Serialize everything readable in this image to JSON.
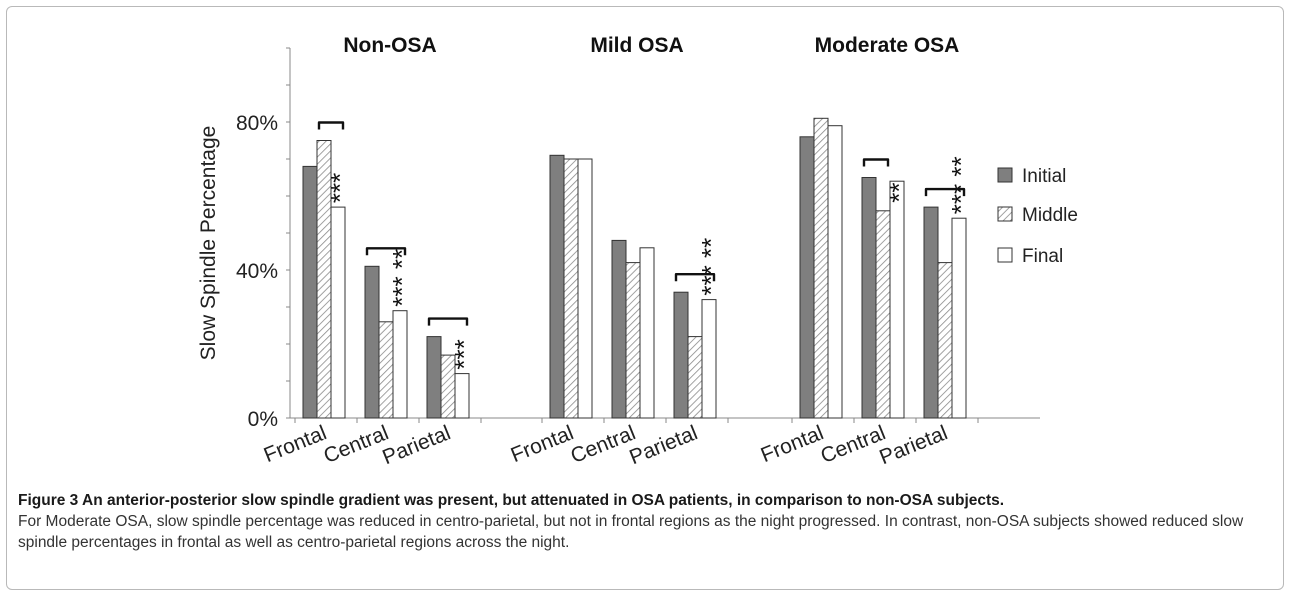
{
  "figure": {
    "title": "Figure 3 An anterior-posterior slow spindle gradient was present, but attenuated in OSA patients, in comparison to non-OSA subjects.",
    "body": "For Moderate OSA, slow spindle percentage was reduced in centro-parietal, but not in frontal regions as the night progressed. In contrast, non-OSA subjects showed reduced slow spindle percentages in frontal as well as centro-parietal regions across the night."
  },
  "colors": {
    "initial": "#7f7f7f",
    "middle_hatch": "#8a8a8a",
    "final": "#ffffff",
    "outline": "#333333",
    "axis": "#888888"
  },
  "chart_data": {
    "type": "bar",
    "ylabel": "Slow Spindle Percentage",
    "ylim": [
      0,
      100
    ],
    "yticks": [
      {
        "value": 0,
        "label": "0%"
      },
      {
        "value": 40,
        "label": "40%"
      },
      {
        "value": 80,
        "label": "80%"
      }
    ],
    "legend": {
      "placement": "right",
      "entries": [
        "Initial",
        "Middle",
        "Final"
      ]
    },
    "groups": [
      {
        "title": "Non-OSA",
        "categories": [
          {
            "label": "Frontal",
            "values": [
              68,
              75,
              57
            ],
            "stars": "***",
            "bracket": [
              1,
              2
            ]
          },
          {
            "label": "Central",
            "values": [
              41,
              26,
              29
            ],
            "stars": "*** **",
            "bracket": [
              0,
              2
            ]
          },
          {
            "label": "Parietal",
            "values": [
              22,
              17,
              12
            ],
            "stars": "***",
            "bracket": [
              0,
              2
            ]
          }
        ]
      },
      {
        "title": "Mild OSA",
        "categories": [
          {
            "label": "Frontal",
            "values": [
              71,
              70,
              70
            ],
            "stars": "",
            "bracket": null
          },
          {
            "label": "Central",
            "values": [
              48,
              42,
              46
            ],
            "stars": "",
            "bracket": null
          },
          {
            "label": "Parietal",
            "values": [
              34,
              22,
              32
            ],
            "stars": "*** **",
            "bracket": [
              0,
              2
            ]
          }
        ]
      },
      {
        "title": "Moderate OSA",
        "categories": [
          {
            "label": "Frontal",
            "values": [
              76,
              81,
              79
            ],
            "stars": "",
            "bracket": null
          },
          {
            "label": "Central",
            "values": [
              65,
              56,
              64
            ],
            "stars": "**",
            "bracket": [
              0,
              1
            ]
          },
          {
            "label": "Parietal",
            "values": [
              57,
              42,
              54
            ],
            "stars": "*** **",
            "bracket": [
              0,
              2
            ]
          }
        ]
      }
    ]
  }
}
